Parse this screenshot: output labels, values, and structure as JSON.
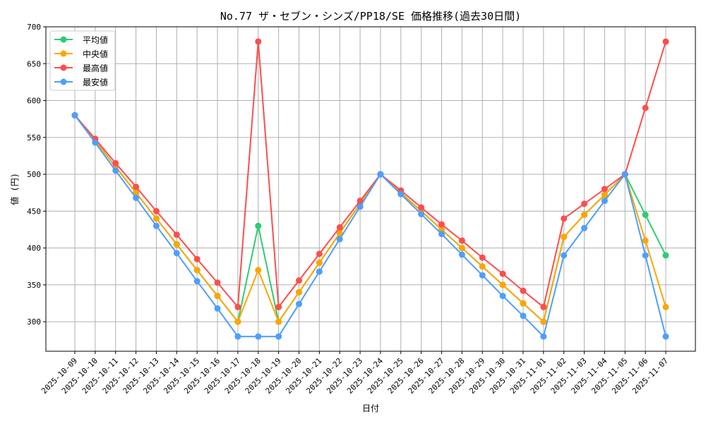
{
  "chart_data": {
    "type": "line",
    "title": "No.77 ザ・セブン・シンズ/PP18/SE 価格推移(過去30日間)",
    "xlabel": "日付",
    "ylabel": "値 (円)",
    "ylim": [
      260,
      700
    ],
    "yticks": [
      300,
      350,
      400,
      450,
      500,
      550,
      600,
      650,
      700
    ],
    "grid": true,
    "legend_position": "top-left",
    "categories": [
      "2025-10-09",
      "2025-10-10",
      "2025-10-11",
      "2025-10-12",
      "2025-10-13",
      "2025-10-14",
      "2025-10-15",
      "2025-10-16",
      "2025-10-17",
      "2025-10-18",
      "2025-10-19",
      "2025-10-20",
      "2025-10-21",
      "2025-10-22",
      "2025-10-23",
      "2025-10-24",
      "2025-10-25",
      "2025-10-26",
      "2025-10-27",
      "2025-10-28",
      "2025-10-29",
      "2025-10-30",
      "2025-10-31",
      "2025-11-01",
      "2025-11-02",
      "2025-11-03",
      "2025-11-04",
      "2025-11-05",
      "2025-11-06",
      "2025-11-07"
    ],
    "series": [
      {
        "name": "平均値",
        "color": "#2ecc71",
        "values": [
          580,
          546,
          510,
          475,
          440,
          405,
          370,
          335,
          300,
          430,
          300,
          340,
          380,
          420,
          460,
          500,
          475,
          450,
          425,
          400,
          375,
          350,
          325,
          300,
          415,
          445,
          472,
          500,
          445,
          390
        ]
      },
      {
        "name": "中央値",
        "color": "#ffa500",
        "values": [
          580,
          546,
          510,
          475,
          440,
          405,
          370,
          335,
          300,
          370,
          300,
          340,
          380,
          420,
          460,
          500,
          475,
          450,
          425,
          400,
          375,
          350,
          325,
          300,
          415,
          445,
          472,
          500,
          410,
          320
        ]
      },
      {
        "name": "最高値",
        "color": "#ff4d4d",
        "values": [
          580,
          548,
          515,
          483,
          450,
          418,
          385,
          353,
          320,
          680,
          320,
          356,
          392,
          428,
          464,
          500,
          478,
          455,
          432,
          410,
          387,
          365,
          342,
          320,
          440,
          460,
          480,
          500,
          590,
          680
        ]
      },
      {
        "name": "最安値",
        "color": "#4d9fff",
        "values": [
          580,
          543,
          505,
          468,
          430,
          393,
          355,
          318,
          280,
          280,
          280,
          324,
          368,
          412,
          456,
          500,
          473,
          446,
          419,
          391,
          363,
          335,
          308,
          280,
          390,
          427,
          464,
          500,
          390,
          280
        ]
      }
    ]
  }
}
